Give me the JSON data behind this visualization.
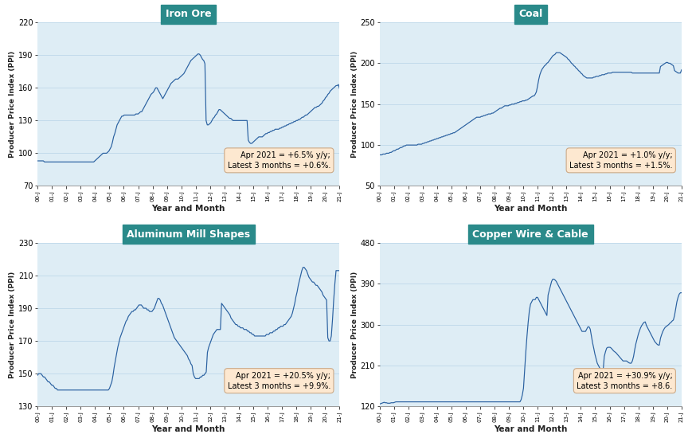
{
  "subplots": [
    {
      "title": "Iron Ore",
      "ylabel": "Producer Price Index (PPI)",
      "xlabel": "Year and Month",
      "annotation": "Apr 2021 = +6.5% y/y;\nLatest 3 months = +0.6%.",
      "ylim": [
        70,
        220
      ],
      "yticks": [
        70,
        100,
        130,
        160,
        190,
        220
      ]
    },
    {
      "title": "Coal",
      "ylabel": "Producer Price Index (PPI)",
      "xlabel": "Year and Month",
      "annotation": "Apr 2021 = +1.0% y/y;\nLatest 3 months = +1.5%.",
      "ylim": [
        50,
        250
      ],
      "yticks": [
        50,
        100,
        150,
        200,
        250
      ]
    },
    {
      "title": "Aluminum Mill Shapes",
      "ylabel": "Producer Price Index (PPI)",
      "xlabel": "Year and Month",
      "annotation": "Apr 2021 = +20.5% y/y;\nLatest 3 months = +9.9%.",
      "ylim": [
        130,
        230
      ],
      "yticks": [
        130,
        150,
        170,
        190,
        210,
        230
      ]
    },
    {
      "title": "Copper Wire & Cable",
      "ylabel": "Producer Price Index (PPI)",
      "xlabel": "Year and Month",
      "annotation": "Apr 2021 = +30.9% y/y;\nLatest 3 months = +8.6.",
      "ylim": [
        120,
        480
      ],
      "yticks": [
        120,
        210,
        300,
        390,
        480
      ]
    }
  ],
  "title_bg_color": "#2a8a8a",
  "title_text_color": "#ffffff",
  "annotation_bg_color": "#fde8d0",
  "bg_color": "#deedf5",
  "line_color": "#2960a0",
  "x_tick_labels": [
    "00-J",
    "01-J",
    "02-J",
    "03-J",
    "04-J",
    "05-J",
    "06-J",
    "07-J",
    "08-J",
    "09-J",
    "10-J",
    "11-J",
    "12-J",
    "13-J",
    "14-J",
    "15-J",
    "16-J",
    "17-J",
    "18-J",
    "19-J",
    "20-J",
    "21-J"
  ],
  "n_ticks": 22,
  "iron_ore": [
    93,
    93,
    93,
    93,
    93,
    93,
    92,
    92,
    92,
    92,
    92,
    92,
    92,
    92,
    92,
    92,
    92,
    92,
    92,
    92,
    92,
    92,
    92,
    92,
    92,
    92,
    92,
    92,
    92,
    92,
    92,
    92,
    92,
    92,
    92,
    92,
    92,
    92,
    92,
    92,
    92,
    92,
    92,
    92,
    92,
    92,
    92,
    92,
    92,
    93,
    94,
    95,
    96,
    97,
    98,
    99,
    100,
    100,
    100,
    100,
    101,
    102,
    104,
    106,
    110,
    115,
    118,
    122,
    126,
    128,
    130,
    132,
    134,
    134,
    135,
    135,
    135,
    135,
    135,
    135,
    135,
    135,
    135,
    135,
    136,
    136,
    136,
    137,
    138,
    138,
    140,
    142,
    144,
    146,
    148,
    150,
    152,
    154,
    155,
    156,
    158,
    160,
    160,
    158,
    156,
    154,
    152,
    150,
    152,
    154,
    156,
    158,
    160,
    162,
    164,
    165,
    166,
    167,
    168,
    168,
    168,
    169,
    170,
    171,
    172,
    173,
    175,
    177,
    179,
    181,
    183,
    185,
    186,
    187,
    188,
    189,
    190,
    191,
    191,
    190,
    188,
    186,
    185,
    182,
    130,
    126,
    126,
    127,
    128,
    130,
    132,
    133,
    135,
    136,
    138,
    140,
    140,
    139,
    138,
    137,
    136,
    135,
    134,
    133,
    132,
    132,
    131,
    130,
    130,
    130,
    130,
    130,
    130,
    130,
    130,
    130,
    130,
    130,
    130,
    130,
    112,
    110,
    109,
    109,
    110,
    111,
    112,
    113,
    114,
    115,
    115,
    115,
    115,
    116,
    117,
    118,
    118,
    119,
    119,
    120,
    120,
    121,
    121,
    122,
    122,
    122,
    122,
    123,
    123,
    124,
    124,
    125,
    125,
    126,
    126,
    127,
    127,
    128,
    128,
    129,
    129,
    130,
    130,
    131,
    131,
    132,
    133,
    133,
    134,
    135,
    135,
    136,
    137,
    138,
    139,
    140,
    141,
    142,
    142,
    143,
    143,
    144,
    145,
    146,
    148,
    149,
    151,
    152,
    154,
    155,
    157,
    158,
    159,
    160,
    161,
    162,
    162,
    163,
    159
  ],
  "coal": [
    88,
    88,
    88,
    89,
    89,
    89,
    90,
    90,
    90,
    91,
    91,
    92,
    93,
    93,
    94,
    95,
    95,
    96,
    97,
    97,
    98,
    99,
    99,
    100,
    100,
    100,
    100,
    100,
    100,
    100,
    100,
    100,
    100,
    101,
    101,
    101,
    101,
    102,
    102,
    103,
    103,
    104,
    104,
    105,
    105,
    106,
    106,
    107,
    107,
    108,
    108,
    109,
    109,
    110,
    110,
    111,
    111,
    112,
    112,
    113,
    113,
    114,
    114,
    115,
    115,
    116,
    117,
    118,
    119,
    120,
    121,
    122,
    123,
    124,
    125,
    126,
    127,
    128,
    129,
    130,
    131,
    132,
    133,
    134,
    134,
    134,
    134,
    135,
    135,
    136,
    136,
    137,
    137,
    138,
    138,
    138,
    139,
    139,
    140,
    141,
    142,
    143,
    144,
    145,
    145,
    146,
    147,
    148,
    148,
    148,
    148,
    149,
    149,
    150,
    150,
    150,
    151,
    151,
    152,
    152,
    153,
    153,
    154,
    154,
    154,
    155,
    155,
    156,
    157,
    158,
    159,
    160,
    160,
    162,
    165,
    172,
    180,
    186,
    190,
    193,
    195,
    197,
    198,
    200,
    201,
    203,
    205,
    207,
    209,
    210,
    211,
    213,
    213,
    213,
    213,
    212,
    211,
    210,
    209,
    208,
    207,
    205,
    204,
    202,
    200,
    199,
    197,
    196,
    194,
    193,
    191,
    190,
    188,
    187,
    185,
    184,
    183,
    182,
    182,
    182,
    182,
    182,
    182,
    183,
    183,
    184,
    184,
    184,
    185,
    185,
    186,
    186,
    186,
    187,
    187,
    188,
    188,
    188,
    188,
    189,
    189,
    189,
    189,
    189,
    189,
    189,
    189,
    189,
    189,
    189,
    189,
    189,
    189,
    189,
    189,
    189,
    188,
    188,
    188,
    188,
    188,
    188,
    188,
    188,
    188,
    188,
    188,
    188,
    188,
    188,
    188,
    188,
    188,
    188,
    188,
    188,
    188,
    188,
    188,
    188,
    196,
    197,
    198,
    199,
    200,
    201,
    201,
    200,
    200,
    199,
    198,
    197,
    191,
    190,
    189,
    188,
    188,
    188,
    192
  ],
  "aluminum": [
    149,
    150,
    150,
    150,
    149,
    148,
    148,
    147,
    146,
    145,
    145,
    144,
    143,
    143,
    142,
    141,
    141,
    140,
    140,
    140,
    140,
    140,
    140,
    140,
    140,
    140,
    140,
    140,
    140,
    140,
    140,
    140,
    140,
    140,
    140,
    140,
    140,
    140,
    140,
    140,
    140,
    140,
    140,
    140,
    140,
    140,
    140,
    140,
    140,
    140,
    140,
    140,
    140,
    140,
    140,
    140,
    140,
    140,
    140,
    140,
    140,
    141,
    143,
    145,
    149,
    154,
    158,
    162,
    166,
    169,
    172,
    174,
    176,
    178,
    180,
    182,
    183,
    185,
    186,
    187,
    188,
    188,
    189,
    189,
    190,
    191,
    192,
    192,
    192,
    191,
    190,
    190,
    190,
    189,
    189,
    188,
    188,
    188,
    189,
    190,
    192,
    194,
    196,
    196,
    195,
    193,
    192,
    190,
    188,
    186,
    184,
    182,
    180,
    178,
    176,
    174,
    172,
    171,
    170,
    169,
    168,
    167,
    166,
    165,
    164,
    163,
    162,
    161,
    159,
    158,
    156,
    155,
    150,
    148,
    147,
    147,
    147,
    147,
    148,
    148,
    149,
    149,
    150,
    151,
    163,
    166,
    168,
    170,
    172,
    174,
    175,
    176,
    177,
    177,
    177,
    177,
    193,
    192,
    191,
    190,
    189,
    188,
    187,
    186,
    184,
    183,
    182,
    181,
    180,
    180,
    179,
    179,
    178,
    178,
    178,
    177,
    177,
    177,
    176,
    176,
    175,
    175,
    174,
    174,
    173,
    173,
    173,
    173,
    173,
    173,
    173,
    173,
    173,
    173,
    174,
    174,
    174,
    175,
    175,
    175,
    176,
    176,
    177,
    177,
    178,
    178,
    179,
    179,
    179,
    180,
    180,
    181,
    182,
    183,
    184,
    185,
    187,
    190,
    193,
    197,
    200,
    204,
    207,
    210,
    213,
    215,
    215,
    214,
    213,
    211,
    209,
    208,
    207,
    206,
    206,
    205,
    204,
    204,
    203,
    202,
    201,
    200,
    198,
    197,
    196,
    195,
    172,
    170,
    170,
    173,
    183,
    195,
    205,
    213,
    213,
    213,
    213
  ],
  "copper": [
    125,
    126,
    127,
    128,
    129,
    128,
    128,
    127,
    127,
    127,
    128,
    128,
    128,
    129,
    130,
    130,
    130,
    130,
    130,
    130,
    130,
    130,
    130,
    130,
    130,
    130,
    130,
    130,
    130,
    130,
    130,
    130,
    130,
    130,
    130,
    130,
    130,
    130,
    130,
    130,
    130,
    130,
    130,
    130,
    130,
    130,
    130,
    130,
    130,
    130,
    130,
    130,
    130,
    130,
    130,
    130,
    130,
    130,
    130,
    130,
    130,
    130,
    130,
    130,
    130,
    130,
    130,
    130,
    130,
    130,
    130,
    130,
    130,
    130,
    130,
    130,
    130,
    130,
    130,
    130,
    130,
    130,
    130,
    130,
    130,
    130,
    130,
    130,
    130,
    130,
    130,
    130,
    130,
    130,
    130,
    130,
    130,
    130,
    130,
    130,
    130,
    130,
    130,
    130,
    130,
    130,
    130,
    130,
    130,
    130,
    130,
    130,
    130,
    130,
    130,
    130,
    130,
    130,
    130,
    130,
    130,
    135,
    145,
    160,
    200,
    240,
    275,
    305,
    330,
    345,
    350,
    355,
    355,
    355,
    360,
    360,
    355,
    350,
    345,
    340,
    335,
    330,
    325,
    320,
    365,
    375,
    385,
    395,
    400,
    400,
    398,
    395,
    390,
    385,
    380,
    375,
    370,
    365,
    360,
    355,
    350,
    345,
    340,
    335,
    330,
    325,
    320,
    315,
    310,
    305,
    300,
    295,
    290,
    285,
    285,
    285,
    285,
    290,
    295,
    295,
    290,
    275,
    260,
    248,
    235,
    225,
    215,
    210,
    205,
    202,
    200,
    198,
    230,
    240,
    248,
    250,
    250,
    250,
    248,
    245,
    242,
    240,
    238,
    235,
    232,
    229,
    226,
    223,
    220,
    220,
    220,
    220,
    218,
    216,
    215,
    215,
    220,
    230,
    245,
    258,
    268,
    278,
    286,
    293,
    298,
    302,
    305,
    306,
    298,
    293,
    288,
    283,
    278,
    273,
    268,
    263,
    260,
    257,
    255,
    255,
    270,
    278,
    285,
    290,
    294,
    296,
    298,
    300,
    303,
    305,
    308,
    310,
    320,
    335,
    350,
    360,
    367,
    370,
    370
  ]
}
